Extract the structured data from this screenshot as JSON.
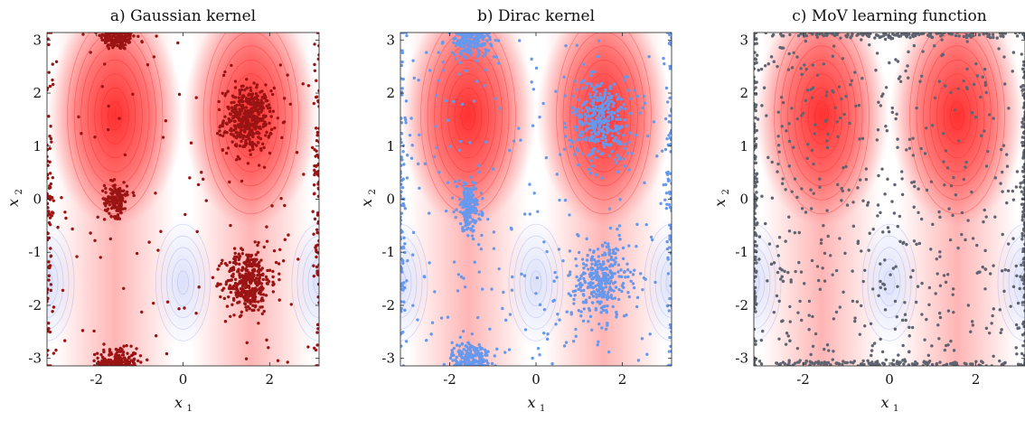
{
  "figure": {
    "colors": {
      "field_positive": "#ff2a2a",
      "field_negative": "#7f8fe8",
      "panel_a_points": "#9b1414",
      "panel_b_points": "#6699ee",
      "panel_c_points": "#5f6470"
    }
  },
  "chart_data": [
    {
      "type": "scatter",
      "title": "a) Gaussian kernel",
      "xlabel": "x",
      "xlabel_sub": "1",
      "ylabel": "x",
      "ylabel_sub": "2",
      "xlim": [
        -3.14159,
        3.14159
      ],
      "ylim": [
        -3.14159,
        3.14159
      ],
      "xticks": [
        -2,
        0,
        2
      ],
      "yticks": [
        3,
        2,
        1,
        0,
        -1,
        -2,
        -3
      ],
      "grid": false,
      "background": "contour field, red = positive, blue = negative",
      "point_color": "#9b1414",
      "clusters": [
        {
          "center": [
            -1.5,
            3.05
          ],
          "spread": [
            0.2,
            0.12
          ],
          "count": 180
        },
        {
          "center": [
            -1.5,
            -3.05
          ],
          "spread": [
            0.22,
            0.12
          ],
          "count": 180
        },
        {
          "center": [
            1.5,
            1.5
          ],
          "spread": [
            0.28,
            0.3
          ],
          "count": 420
        },
        {
          "center": [
            1.5,
            -1.55
          ],
          "spread": [
            0.26,
            0.3
          ],
          "count": 360
        },
        {
          "center": [
            -1.55,
            0.0
          ],
          "spread": [
            0.13,
            0.16
          ],
          "count": 140
        },
        {
          "center": [
            -3.1,
            0.0
          ],
          "spread": [
            0.05,
            1.6
          ],
          "count": 90
        },
        {
          "center": [
            3.1,
            0.0
          ],
          "spread": [
            0.05,
            1.6
          ],
          "count": 90
        }
      ],
      "scatter_background_count": 120
    },
    {
      "type": "scatter",
      "title": "b) Dirac kernel",
      "xlabel": "x",
      "xlabel_sub": "1",
      "ylabel": "x",
      "ylabel_sub": "2",
      "xlim": [
        -3.14159,
        3.14159
      ],
      "ylim": [
        -3.14159,
        3.14159
      ],
      "xticks": [
        -2,
        0,
        2
      ],
      "yticks": [
        3,
        2,
        1,
        0,
        -1,
        -2,
        -3
      ],
      "grid": false,
      "background": "contour field, red = positive, blue = negative",
      "point_color": "#6699ee",
      "clusters": [
        {
          "center": [
            -1.5,
            3.0
          ],
          "spread": [
            0.22,
            0.16
          ],
          "count": 200
        },
        {
          "center": [
            -1.5,
            -3.0
          ],
          "spread": [
            0.22,
            0.16
          ],
          "count": 180
        },
        {
          "center": [
            1.5,
            1.5
          ],
          "spread": [
            0.35,
            0.38
          ],
          "count": 320
        },
        {
          "center": [
            1.5,
            -1.55
          ],
          "spread": [
            0.33,
            0.36
          ],
          "count": 300
        },
        {
          "center": [
            -1.55,
            -0.15
          ],
          "spread": [
            0.14,
            0.22
          ],
          "count": 170
        },
        {
          "center": [
            -3.1,
            0.0
          ],
          "spread": [
            0.05,
            1.6
          ],
          "count": 90
        },
        {
          "center": [
            3.1,
            0.0
          ],
          "spread": [
            0.05,
            1.6
          ],
          "count": 90
        }
      ],
      "scatter_background_count": 260
    },
    {
      "type": "scatter",
      "title": "c) MoV learning function",
      "xlabel": "x",
      "xlabel_sub": "1",
      "ylabel": "x",
      "ylabel_sub": "2",
      "xlim": [
        -3.14159,
        3.14159
      ],
      "ylim": [
        -3.14159,
        3.14159
      ],
      "xticks": [
        -2,
        0,
        2
      ],
      "yticks": [
        3,
        2,
        1,
        0,
        -1,
        -2,
        -3
      ],
      "grid": false,
      "background": "contour field, red = positive, blue = negative",
      "point_color": "#5f6470",
      "clusters": [
        {
          "center": [
            -3.12,
            0.0
          ],
          "spread": [
            0.03,
            1.8
          ],
          "count": 160
        },
        {
          "center": [
            3.12,
            0.0
          ],
          "spread": [
            0.03,
            1.8
          ],
          "count": 160
        },
        {
          "center": [
            0.0,
            3.1
          ],
          "spread": [
            1.8,
            0.03
          ],
          "count": 160
        },
        {
          "center": [
            0.0,
            -3.1
          ],
          "spread": [
            1.8,
            0.03
          ],
          "count": 160
        }
      ],
      "scatter_background_count": 520
    }
  ]
}
